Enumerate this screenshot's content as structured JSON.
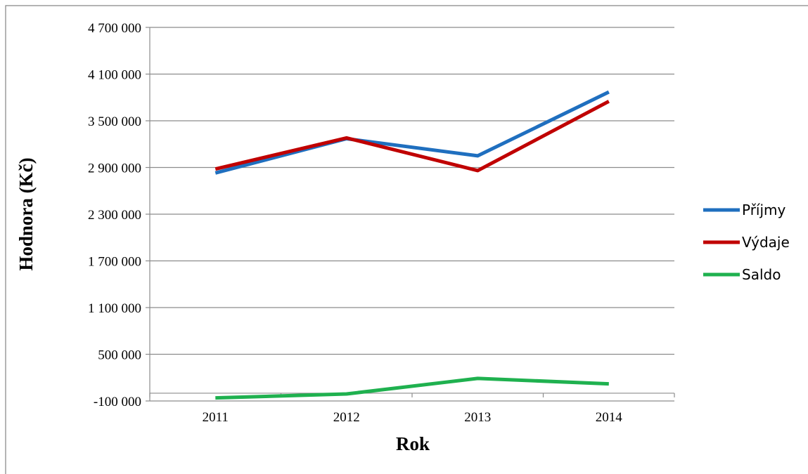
{
  "chart_data": {
    "type": "line",
    "title": "",
    "xlabel": "Rok",
    "ylabel": "Hodnora (Kč)",
    "x": [
      "2011",
      "2012",
      "2013",
      "2014"
    ],
    "ylim": [
      -100000,
      4700000
    ],
    "yticks": [
      -100000,
      500000,
      1100000,
      1700000,
      2300000,
      2900000,
      3500000,
      4100000,
      4700000
    ],
    "ytick_labels": [
      "-100 000",
      "500 000",
      "1 100 000",
      "1 700 000",
      "2 300 000",
      "2 900 000",
      "3 500 000",
      "4 100 000",
      "4 700 000"
    ],
    "grid": "horizontal",
    "legend_position": "right",
    "series": [
      {
        "name": "Příjmy",
        "color": "#1f6fbf",
        "values": [
          2830000,
          3270000,
          3050000,
          3870000
        ]
      },
      {
        "name": "Výdaje",
        "color": "#c00000",
        "values": [
          2880000,
          3280000,
          2860000,
          3750000
        ]
      },
      {
        "name": "Saldo",
        "color": "#1fb14f",
        "values": [
          -60000,
          -10000,
          190000,
          120000
        ]
      }
    ]
  }
}
